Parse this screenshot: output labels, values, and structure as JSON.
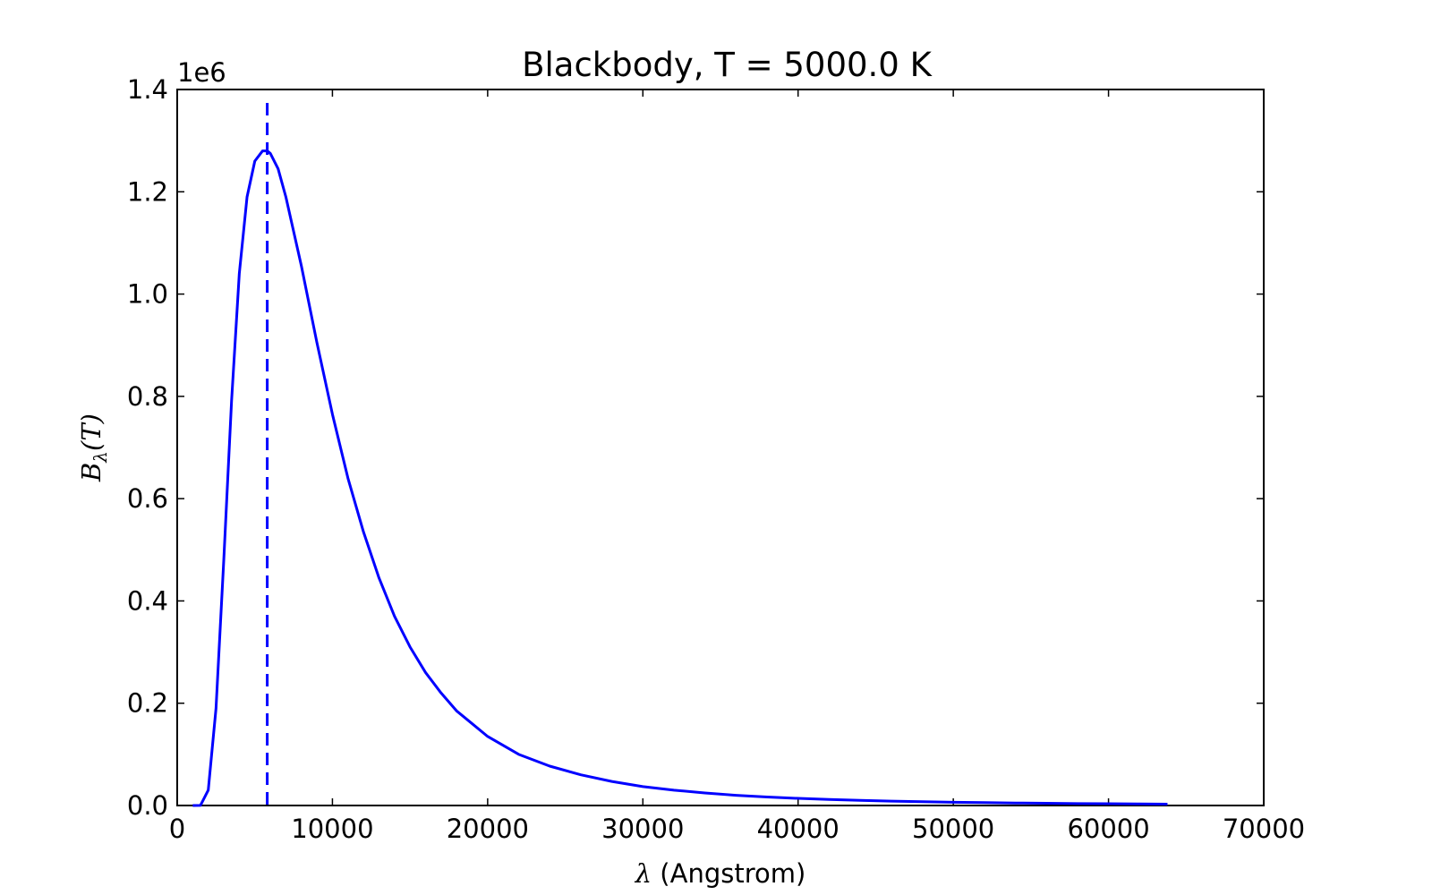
{
  "chart_data": {
    "type": "line",
    "title": "Blackbody, T = 5000.0 K",
    "xlabel_symbol": "λ",
    "xlabel_text": " (Angstrom)",
    "ylabel_symbol": "B",
    "ylabel_subscript": "λ",
    "ylabel_suffix": "(T)",
    "y_offset_label": "1e6",
    "xlim": [
      0,
      70000
    ],
    "ylim": [
      0,
      1400000
    ],
    "x_ticks": [
      0,
      10000,
      20000,
      30000,
      40000,
      50000,
      60000,
      70000
    ],
    "x_tick_labels": [
      "0",
      "10000",
      "20000",
      "30000",
      "40000",
      "50000",
      "60000",
      "70000"
    ],
    "y_ticks": [
      0,
      200000,
      400000,
      600000,
      800000,
      1000000,
      1200000,
      1400000
    ],
    "y_tick_labels": [
      "0.0",
      "0.2",
      "0.4",
      "0.6",
      "0.8",
      "1.0",
      "1.2",
      "1.4"
    ],
    "grid": false,
    "line_color": "#0000ff",
    "series": [
      {
        "x": [
          1000,
          1500,
          2000,
          2500,
          3000,
          3500,
          4000,
          4500,
          5000,
          5500,
          5800,
          6000,
          6500,
          7000,
          8000,
          9000,
          10000,
          11000,
          12000,
          13000,
          14000,
          15000,
          16000,
          17000,
          18000,
          19000,
          20000,
          22000,
          24000,
          26000,
          28000,
          30000,
          32000,
          34000,
          36000,
          38000,
          40000,
          42000,
          44000,
          46000,
          48000,
          50000,
          52000,
          54000,
          56000,
          58000,
          60000,
          62000,
          63800
        ],
        "y": [
          0,
          300,
          30000,
          190000,
          480000,
          790000,
          1040000,
          1190000,
          1260000,
          1280000,
          1280000,
          1275000,
          1245000,
          1190000,
          1055000,
          905000,
          765000,
          640000,
          535000,
          445000,
          370000,
          310000,
          260000,
          220000,
          185000,
          160000,
          135000,
          100000,
          77000,
          60000,
          47000,
          37000,
          30000,
          24500,
          20000,
          16700,
          13900,
          11800,
          10000,
          8600,
          7400,
          6400,
          5600,
          4900,
          4300,
          3800,
          3400,
          3000,
          2700
        ]
      }
    ],
    "vertical_line": {
      "x": 5800,
      "style": "dashed"
    }
  }
}
